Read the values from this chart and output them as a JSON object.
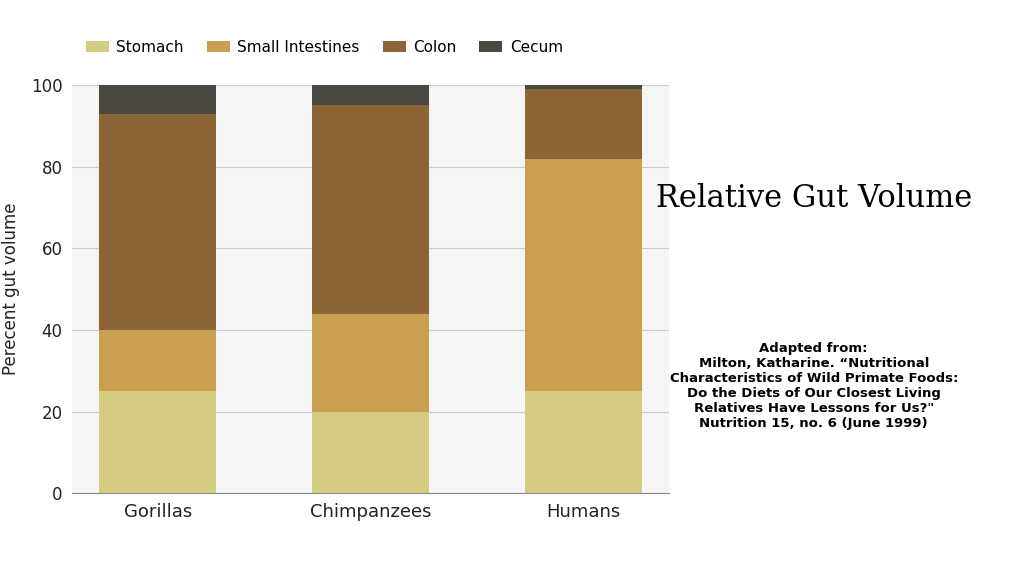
{
  "categories": [
    "Gorillas",
    "Chimpanzees",
    "Humans"
  ],
  "segments": {
    "Stomach": [
      25,
      20,
      25
    ],
    "Small Intestines": [
      15,
      24,
      57
    ],
    "Colon": [
      53,
      51,
      17
    ],
    "Cecum": [
      7,
      5,
      1
    ]
  },
  "colors": {
    "Stomach": "#d4cc80",
    "Small Intestines": "#c8a050",
    "Colon": "#8b6535",
    "Cecum": "#4a4840"
  },
  "ylabel": "Perecent gut volume",
  "ylim": [
    0,
    100
  ],
  "yticks": [
    0,
    20,
    40,
    60,
    80,
    100
  ],
  "title": "Relative Gut Volume",
  "title_fontsize": 22,
  "legend_labels": [
    "Stomach",
    "Small Intestines",
    "Colon",
    "Cecum"
  ],
  "citation": "Adapted from:\nMilton, Katharine. “Nutritional\nCharacteristics of Wild Primate Foods:\nDo the Diets of Our Closest Living\nRelatives Have Lessons for Us?\"\nNutrition 15, no. 6 (June 1999)",
  "bg_color": "#ffffff",
  "bar_width": 0.55,
  "axis_bg": "#f5f5f5",
  "grid_color": "#cccccc"
}
